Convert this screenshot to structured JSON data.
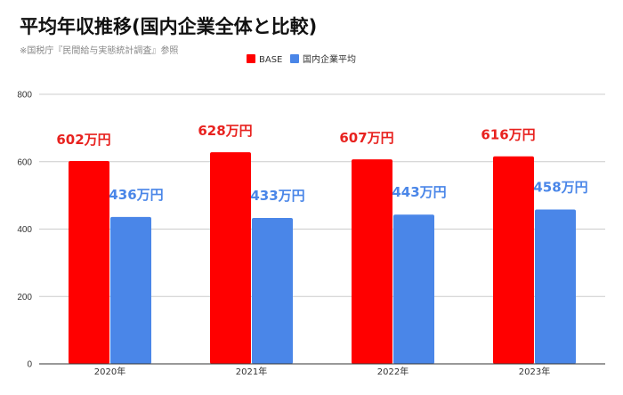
{
  "chart_data": {
    "type": "bar",
    "title": "平均年収推移(国内企業全体と比較)",
    "subtitle": "※国税庁『民間給与実態統計調査』参照",
    "categories": [
      "2020年",
      "2021年",
      "2022年",
      "2023年"
    ],
    "series": [
      {
        "name": "BASE",
        "values": [
          602,
          628,
          607,
          616
        ],
        "labels": [
          "602万円",
          "628万円",
          "607万円",
          "616万円"
        ],
        "color": "#ff0000",
        "label_color": "#e8221f"
      },
      {
        "name": "国内企業平均",
        "values": [
          436,
          433,
          443,
          458
        ],
        "labels": [
          "436万円",
          "433万円",
          "443万円",
          "458万円"
        ],
        "color": "#4a86e8",
        "label_color": "#4a86e8"
      }
    ],
    "ylim": [
      0,
      800
    ],
    "yticks": [
      0,
      200,
      400,
      600,
      800
    ],
    "grid": true,
    "legend_position": "top-center",
    "xlabel": "",
    "ylabel": ""
  }
}
